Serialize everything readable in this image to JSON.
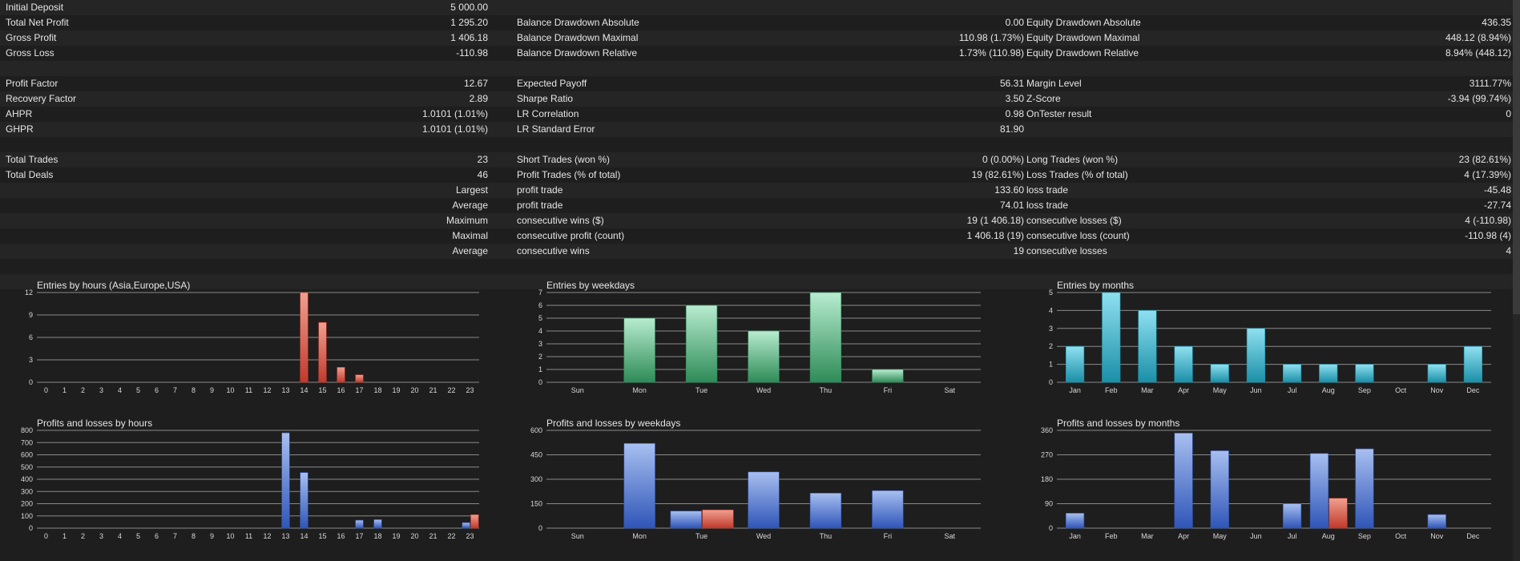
{
  "stats": {
    "rows": [
      {
        "style": "alt",
        "c1": "Initial Deposit",
        "v1": "5 000.00",
        "l2": "",
        "v2": "",
        "l3": "",
        "v3": ""
      },
      {
        "style": "dark",
        "c1": "Total Net Profit",
        "v1": "1 295.20",
        "l2": "Balance Drawdown Absolute",
        "v2": "0.00",
        "l3": "Equity Drawdown Absolute",
        "v3": "436.35"
      },
      {
        "style": "alt",
        "c1": "Gross Profit",
        "v1": "1 406.18",
        "l2": "Balance Drawdown Maximal",
        "v2": "110.98 (1.73%)",
        "l3": "Equity Drawdown Maximal",
        "v3": "448.12 (8.94%)"
      },
      {
        "style": "dark",
        "c1": "Gross Loss",
        "v1": "-110.98",
        "l2": "Balance Drawdown Relative",
        "v2": "1.73% (110.98)",
        "l3": "Equity Drawdown Relative",
        "v3": "8.94% (448.12)"
      },
      {
        "style": "alt",
        "c1": "",
        "v1": "",
        "l2": "",
        "v2": "",
        "l3": "",
        "v3": ""
      },
      {
        "style": "dark",
        "c1": "Profit Factor",
        "v1": "12.67",
        "l2": "Expected Payoff",
        "v2": "56.31",
        "l3": "Margin Level",
        "v3": "3111.77%"
      },
      {
        "style": "alt",
        "c1": "Recovery Factor",
        "v1": "2.89",
        "l2": "Sharpe Ratio",
        "v2": "3.50",
        "l3": "Z-Score",
        "v3": "-3.94 (99.74%)"
      },
      {
        "style": "dark",
        "c1": "AHPR",
        "v1": "1.0101 (1.01%)",
        "l2": "LR Correlation",
        "v2": "0.98",
        "l3": "OnTester result",
        "v3": "0"
      },
      {
        "style": "alt",
        "c1": "GHPR",
        "v1": "1.0101 (1.01%)",
        "l2": "LR Standard Error",
        "v2": "81.90",
        "l3": "",
        "v3": ""
      },
      {
        "style": "dark",
        "c1": "",
        "v1": "",
        "l2": "",
        "v2": "",
        "l3": "",
        "v3": ""
      },
      {
        "style": "alt",
        "c1": "Total Trades",
        "v1": "23",
        "l2": "Short Trades (won %)",
        "v2": "0 (0.00%)",
        "l3": "Long Trades (won %)",
        "v3": "23 (82.61%)"
      },
      {
        "style": "dark",
        "c1": "Total Deals",
        "v1": "46",
        "l2": "Profit Trades (% of total)",
        "v2": "19 (82.61%)",
        "l3": "Loss Trades (% of total)",
        "v3": "4 (17.39%)"
      },
      {
        "style": "alt",
        "c1": "",
        "v1": "Largest",
        "l2": "profit trade",
        "v2": "133.60",
        "l3": "loss trade",
        "v3": "-45.48"
      },
      {
        "style": "dark",
        "c1": "",
        "v1": "Average",
        "l2": "profit trade",
        "v2": "74.01",
        "l3": "loss trade",
        "v3": "-27.74"
      },
      {
        "style": "alt",
        "c1": "",
        "v1": "Maximum",
        "l2": "consecutive wins ($)",
        "v2": "19 (1 406.18)",
        "l3": "consecutive losses ($)",
        "v3": "4 (-110.98)"
      },
      {
        "style": "dark",
        "c1": "",
        "v1": "Maximal",
        "l2": "consecutive profit (count)",
        "v2": "1 406.18 (19)",
        "l3": "consecutive loss (count)",
        "v3": "-110.98 (4)"
      },
      {
        "style": "alt",
        "c1": "",
        "v1": "Average",
        "l2": "consecutive wins",
        "v2": "19",
        "l3": "consecutive losses",
        "v3": "4"
      },
      {
        "style": "dark",
        "c1": "",
        "v1": "",
        "l2": "",
        "v2": "",
        "l3": "",
        "v3": ""
      },
      {
        "style": "alt",
        "c1": "",
        "v1": "",
        "l2": "",
        "v2": "",
        "l3": "",
        "v3": ""
      }
    ]
  },
  "colors": {
    "red_bar": "#c0392b",
    "green_bar": "#2e8b57",
    "teal_bar": "#1a8fa8",
    "blue_bar": "#2f55b8",
    "grid": "#8a8a8a"
  },
  "chart_data": [
    {
      "id": "entries-hours",
      "type": "bar",
      "title": "Entries by hours (Asia,Europe,USA)",
      "categories": [
        "0",
        "1",
        "2",
        "3",
        "4",
        "5",
        "6",
        "7",
        "8",
        "9",
        "10",
        "11",
        "12",
        "13",
        "14",
        "15",
        "16",
        "17",
        "18",
        "19",
        "20",
        "21",
        "22",
        "23"
      ],
      "ylim": [
        0,
        12
      ],
      "yticks": [
        0,
        3,
        6,
        9,
        12
      ],
      "series": [
        {
          "color": "red",
          "values": [
            0,
            0,
            0,
            0,
            0,
            0,
            0,
            0,
            0,
            0,
            0,
            0,
            0,
            0,
            12,
            8,
            2,
            1,
            0,
            0,
            0,
            0,
            0,
            0
          ]
        }
      ]
    },
    {
      "id": "entries-weekdays",
      "type": "bar",
      "title": "Entries by weekdays",
      "categories": [
        "Sun",
        "Mon",
        "Tue",
        "Wed",
        "Thu",
        "Fri",
        "Sat"
      ],
      "ylim": [
        0,
        7
      ],
      "yticks": [
        0,
        1,
        2,
        3,
        4,
        5,
        6,
        7
      ],
      "series": [
        {
          "color": "green",
          "values": [
            0,
            5,
            6,
            4,
            7,
            1,
            0
          ]
        }
      ]
    },
    {
      "id": "entries-months",
      "type": "bar",
      "title": "Entries by months",
      "categories": [
        "Jan",
        "Feb",
        "Mar",
        "Apr",
        "May",
        "Jun",
        "Jul",
        "Aug",
        "Sep",
        "Oct",
        "Nov",
        "Dec"
      ],
      "ylim": [
        0,
        5
      ],
      "yticks": [
        0,
        1,
        2,
        3,
        4,
        5
      ],
      "series": [
        {
          "color": "teal",
          "values": [
            2,
            5,
            4,
            2,
            1,
            3,
            1,
            1,
            1,
            0,
            1,
            2
          ]
        }
      ]
    },
    {
      "id": "pl-hours",
      "type": "bar",
      "title": "Profits and losses by hours",
      "categories": [
        "0",
        "1",
        "2",
        "3",
        "4",
        "5",
        "6",
        "7",
        "8",
        "9",
        "10",
        "11",
        "12",
        "13",
        "14",
        "15",
        "16",
        "17",
        "18",
        "19",
        "20",
        "21",
        "22",
        "23"
      ],
      "ylim": [
        0,
        800
      ],
      "yticks": [
        0,
        100,
        200,
        300,
        400,
        500,
        600,
        700,
        800
      ],
      "series": [
        {
          "color": "blue",
          "values": [
            0,
            0,
            0,
            0,
            0,
            0,
            0,
            0,
            0,
            0,
            0,
            0,
            0,
            780,
            455,
            0,
            0,
            65,
            70,
            0,
            0,
            0,
            0,
            45
          ]
        },
        {
          "color": "red",
          "values": [
            0,
            0,
            0,
            0,
            0,
            0,
            0,
            0,
            0,
            0,
            0,
            0,
            0,
            0,
            0,
            0,
            0,
            0,
            0,
            0,
            0,
            0,
            0,
            110
          ]
        }
      ]
    },
    {
      "id": "pl-weekdays",
      "type": "bar",
      "title": "Profits and losses by weekdays",
      "categories": [
        "Sun",
        "Mon",
        "Tue",
        "Wed",
        "Thu",
        "Fri",
        "Sat"
      ],
      "ylim": [
        0,
        600
      ],
      "yticks": [
        0,
        150,
        300,
        450,
        600
      ],
      "series": [
        {
          "color": "blue",
          "values": [
            0,
            520,
            105,
            345,
            215,
            230,
            0
          ]
        },
        {
          "color": "red",
          "values": [
            0,
            0,
            112,
            0,
            0,
            0,
            0
          ]
        }
      ]
    },
    {
      "id": "pl-months",
      "type": "bar",
      "title": "Profits and losses by months",
      "categories": [
        "Jan",
        "Feb",
        "Mar",
        "Apr",
        "May",
        "Jun",
        "Jul",
        "Aug",
        "Sep",
        "Oct",
        "Nov",
        "Dec"
      ],
      "ylim": [
        0,
        360
      ],
      "yticks": [
        0,
        90,
        180,
        270,
        360
      ],
      "series": [
        {
          "color": "blue",
          "values": [
            55,
            0,
            0,
            350,
            285,
            0,
            90,
            275,
            292,
            0,
            50,
            0
          ]
        },
        {
          "color": "red",
          "values": [
            0,
            0,
            0,
            0,
            0,
            0,
            0,
            110,
            0,
            0,
            0,
            0
          ]
        }
      ]
    }
  ]
}
